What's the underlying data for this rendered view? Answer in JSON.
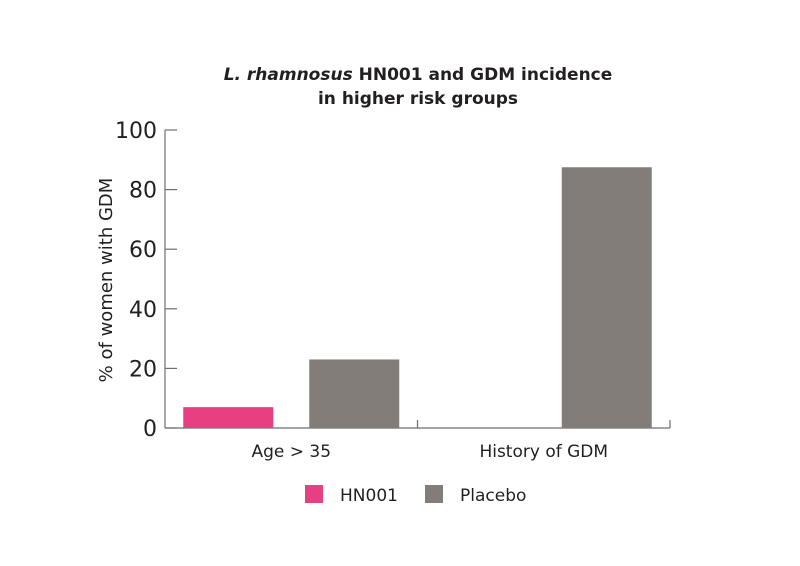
{
  "chart_data": {
    "type": "bar",
    "title_italic": "L. rhamnosus",
    "title_rest": " HN001 and GDM incidence",
    "title_line2": "in higher risk groups",
    "ylabel": "% of women with GDM",
    "xlabel": "",
    "ylim": [
      0,
      100
    ],
    "yticks": [
      "0",
      "20",
      "40",
      "60",
      "80",
      "100"
    ],
    "categories": [
      "Age > 35",
      "History of GDM"
    ],
    "series": [
      {
        "name": "HN001",
        "color": "#e83e82",
        "values": [
          7,
          0
        ]
      },
      {
        "name": "Placebo",
        "color": "#827d79",
        "values": [
          23,
          87.5
        ]
      }
    ],
    "legend_placement": "bottom",
    "grid": false
  }
}
